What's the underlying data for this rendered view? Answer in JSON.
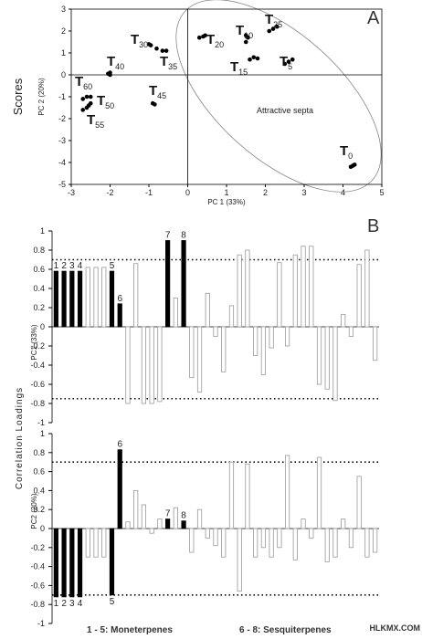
{
  "watermark": "HLKMX.COM",
  "chart_data": [
    {
      "type": "scatter",
      "panel": "A",
      "side_label": "Scores",
      "xlabel": "PC 1 (33%)",
      "ylabel": "PC 2 (20%)",
      "annotation": "Attractive septa",
      "xlim": [
        -3,
        5
      ],
      "xticks": [
        -3,
        -2,
        -1,
        0,
        1,
        2,
        3,
        4,
        5
      ],
      "ylim": [
        -5,
        3
      ],
      "yticks": [
        -5,
        -4,
        -3,
        -2,
        -1,
        0,
        1,
        2,
        3
      ],
      "color": "#000",
      "series": [
        {
          "name": "T0",
          "x": [
            4.2,
            4.3,
            4.25
          ],
          "y": [
            -4.2,
            -4.1,
            -4.15
          ]
        },
        {
          "name": "T5",
          "x": [
            2.5,
            2.6,
            2.7
          ],
          "y": [
            0.5,
            0.6,
            0.7
          ]
        },
        {
          "name": "T10",
          "x": [
            1.5,
            1.55,
            1.5
          ],
          "y": [
            1.5,
            1.7,
            1.8
          ]
        },
        {
          "name": "T15",
          "x": [
            1.6,
            1.7,
            1.8
          ],
          "y": [
            0.7,
            0.8,
            0.75
          ]
        },
        {
          "name": "T20",
          "x": [
            0.3,
            0.4,
            0.45
          ],
          "y": [
            1.7,
            1.75,
            1.8
          ]
        },
        {
          "name": "T25",
          "x": [
            2.1,
            2.2,
            2.3
          ],
          "y": [
            2.0,
            2.1,
            2.2
          ]
        },
        {
          "name": "T30",
          "x": [
            -1.0,
            -0.95,
            -0.8
          ],
          "y": [
            1.4,
            1.35,
            1.2
          ]
        },
        {
          "name": "T35",
          "x": [
            -0.65,
            -0.55
          ],
          "y": [
            1.1,
            1.1
          ]
        },
        {
          "name": "T40",
          "x": [
            -2.0,
            -2.0,
            -2.05
          ],
          "y": [
            0.0,
            0.1,
            0.05
          ]
        },
        {
          "name": "T45",
          "x": [
            -0.9,
            -0.85
          ],
          "y": [
            -1.3,
            -1.35
          ]
        },
        {
          "name": "T50",
          "x": [
            -2.6,
            -2.5,
            -2.55
          ],
          "y": [
            -1.5,
            -1.3,
            -1.4
          ]
        },
        {
          "name": "T55",
          "x": [
            -2.7
          ],
          "y": [
            -1.6
          ]
        },
        {
          "name": "T60",
          "x": [
            -2.6,
            -2.5,
            -2.7
          ],
          "y": [
            -1.0,
            -1.0,
            -1.1
          ]
        }
      ]
    },
    {
      "type": "bar",
      "panel": "B",
      "side_label": "Correlation Loadings",
      "ylabel": "PC1 (33%)",
      "ylim": [
        -1,
        1
      ],
      "yticks": [
        -1,
        -0.8,
        -0.6,
        -0.4,
        -0.2,
        0,
        0.2,
        0.4,
        0.6,
        0.8,
        1
      ],
      "hlines": [
        0.7,
        -0.75
      ],
      "color": "#999",
      "highlight_color": "#000",
      "categories": [
        null,
        null,
        null,
        null,
        null,
        null,
        null,
        null,
        null,
        null,
        null,
        null,
        null,
        null,
        null,
        null,
        null,
        null,
        null,
        null,
        null,
        null,
        null,
        null,
        null,
        null,
        null,
        null,
        null,
        null,
        null,
        null,
        null,
        null,
        null,
        null,
        null,
        null,
        null,
        null,
        null
      ],
      "values": [
        0.58,
        0.58,
        0.58,
        0.58,
        0.62,
        0.62,
        0.62,
        0.58,
        0.24,
        -0.8,
        0.66,
        -0.8,
        -0.8,
        -0.78,
        0.9,
        0.3,
        0.9,
        -0.53,
        -0.68,
        0.35,
        -0.1,
        -0.47,
        0.22,
        0.75,
        0.8,
        -0.3,
        -0.5,
        -0.22,
        0.67,
        -0.2,
        0.75,
        0.84,
        0.84,
        -0.6,
        -0.65,
        -0.77,
        0.13,
        -0.1,
        0.65,
        0.8,
        -0.35
      ],
      "bar_labels": [
        "1",
        "2",
        "3",
        "4",
        null,
        null,
        null,
        "5",
        "6",
        null,
        null,
        null,
        null,
        null,
        "7",
        null,
        "8",
        null,
        null,
        null,
        null,
        null,
        null,
        null,
        null,
        null,
        null,
        null,
        null,
        null,
        null,
        null,
        null,
        null,
        null,
        null,
        null,
        null,
        null,
        null,
        null
      ]
    },
    {
      "type": "bar",
      "ylabel": "PC2 (20%)",
      "ylim": [
        -1,
        1
      ],
      "yticks": [
        -1,
        -0.8,
        -0.6,
        -0.4,
        -0.2,
        0,
        0.2,
        0.4,
        0.6,
        0.8,
        1
      ],
      "hlines": [
        0.7,
        -0.7
      ],
      "color": "#999",
      "highlight_color": "#000",
      "notes": [
        "1 - 5: Moneterpenes",
        "6 - 8: Sesquiterpenes"
      ],
      "categories": [
        null,
        null,
        null,
        null,
        null,
        null,
        null,
        null,
        null,
        null,
        null,
        null,
        null,
        null,
        null,
        null,
        null,
        null,
        null,
        null,
        null,
        null,
        null,
        null,
        null,
        null,
        null,
        null,
        null,
        null,
        null,
        null,
        null,
        null,
        null,
        null,
        null,
        null,
        null,
        null,
        null
      ],
      "values": [
        -0.72,
        -0.72,
        -0.72,
        -0.72,
        -0.3,
        -0.3,
        -0.3,
        -0.7,
        0.83,
        0.07,
        0.4,
        0.25,
        -0.05,
        0.1,
        0.1,
        0.22,
        0.08,
        -0.25,
        0.2,
        -0.1,
        -0.18,
        -0.3,
        0.7,
        -0.66,
        0.68,
        -0.3,
        -0.2,
        -0.3,
        -0.2,
        0.77,
        -0.33,
        0.1,
        -0.1,
        0.75,
        -0.35,
        -0.3,
        0.1,
        -0.2,
        0.55,
        -0.3,
        -0.25
      ],
      "bar_labels": [
        "1",
        "2",
        "3",
        "4",
        null,
        null,
        null,
        "5",
        "6",
        null,
        null,
        null,
        null,
        null,
        "7",
        null,
        "8",
        null,
        null,
        null,
        null,
        null,
        null,
        null,
        null,
        null,
        null,
        null,
        null,
        null,
        null,
        null,
        null,
        null,
        null,
        null,
        null,
        null,
        null,
        null,
        null
      ]
    }
  ]
}
